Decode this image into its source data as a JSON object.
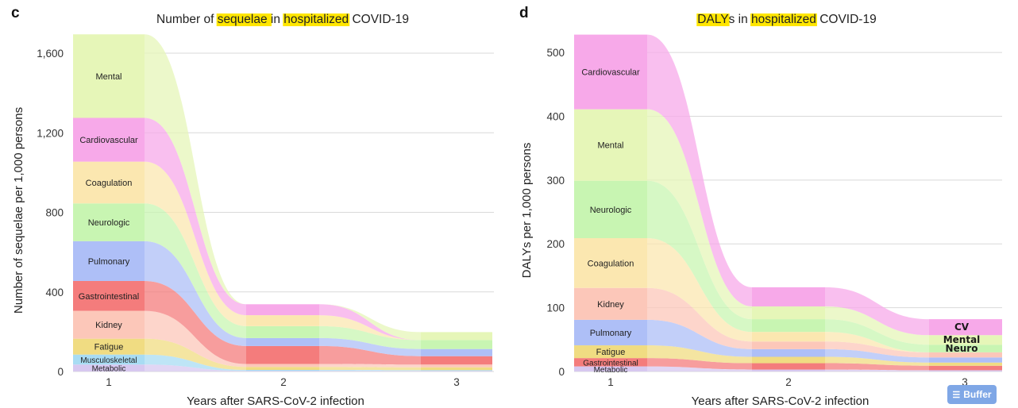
{
  "chart_data": [
    {
      "panel": "c",
      "type": "area",
      "subtype": "alluvial-stacked",
      "title_parts": [
        {
          "text": "Number of ",
          "highlight": false
        },
        {
          "text": "sequelae ",
          "highlight": true
        },
        {
          "text": "in ",
          "highlight": false
        },
        {
          "text": "hospitalized",
          "highlight": true
        },
        {
          "text": " COVID-19",
          "highlight": false
        }
      ],
      "xlabel": "Years after SARS-CoV-2 infection",
      "ylabel": "Number of sequelae per 1,000 persons",
      "x": [
        1,
        2,
        3
      ],
      "x_tick_labels": [
        "1",
        "2",
        "3"
      ],
      "ylim": [
        0,
        1700
      ],
      "y_ticks": [
        0,
        400,
        800,
        1200,
        1600
      ],
      "y_tick_labels": [
        "0",
        "400",
        "800",
        "1,200",
        "1,600"
      ],
      "grid": true,
      "legend": "inline labels at year 1",
      "series": [
        {
          "name": "Metabolic",
          "color": "#d7c8f0",
          "values": [
            35,
            3,
            3
          ]
        },
        {
          "name": "Musculoskeletal",
          "color": "#a8dcf3",
          "values": [
            50,
            5,
            4
          ]
        },
        {
          "name": "Fatigue",
          "color": "#f0dc82",
          "values": [
            80,
            15,
            14
          ]
        },
        {
          "name": "Kidney",
          "color": "#fcc7b9",
          "values": [
            140,
            15,
            14
          ]
        },
        {
          "name": "Gastrointestinal",
          "color": "#f47c7c",
          "values": [
            150,
            90,
            42
          ]
        },
        {
          "name": "Pulmonary",
          "color": "#aebff7",
          "values": [
            200,
            40,
            36
          ]
        },
        {
          "name": "Neurologic",
          "color": "#c8f5b2",
          "values": [
            190,
            60,
            45
          ]
        },
        {
          "name": "Coagulation",
          "color": "#fbe7b0",
          "values": [
            210,
            55,
            0
          ]
        },
        {
          "name": "Cardiovascular",
          "color": "#f7a9e9",
          "values": [
            220,
            55,
            0
          ]
        },
        {
          "name": "Mental",
          "color": "#e6f6b8",
          "values": [
            420,
            0,
            40
          ]
        }
      ]
    },
    {
      "panel": "d",
      "type": "area",
      "subtype": "alluvial-stacked",
      "title_parts": [
        {
          "text": "DALY",
          "highlight": true
        },
        {
          "text": "s in ",
          "highlight": false
        },
        {
          "text": "hospitalized",
          "highlight": true
        },
        {
          "text": " COVID-19",
          "highlight": false
        }
      ],
      "xlabel": "Years after SARS-CoV-2 infection",
      "ylabel": "DALYs per 1,000 persons",
      "x": [
        1,
        2,
        3
      ],
      "x_tick_labels": [
        "1",
        "2",
        "3"
      ],
      "ylim": [
        0,
        530
      ],
      "y_ticks": [
        0,
        100,
        200,
        300,
        400,
        500
      ],
      "y_tick_labels": [
        "0",
        "100",
        "200",
        "300",
        "400",
        "500"
      ],
      "grid": true,
      "legend": "inline labels at year 1; CV, Mental, Neuro labelled at year 3",
      "end_labels": [
        "CV",
        "Mental",
        "Neuro"
      ],
      "series": [
        {
          "name": "Metabolic",
          "color": "#d7c8f0",
          "values": [
            8,
            3,
            2
          ]
        },
        {
          "name": "Gastrointestinal",
          "color": "#f47c7c",
          "values": [
            13,
            10,
            7
          ]
        },
        {
          "name": "Fatigue",
          "color": "#f0dc82",
          "values": [
            20,
            10,
            5
          ]
        },
        {
          "name": "Pulmonary",
          "color": "#aebff7",
          "values": [
            40,
            12,
            8
          ]
        },
        {
          "name": "Kidney",
          "color": "#fcc7b9",
          "values": [
            50,
            12,
            8
          ]
        },
        {
          "name": "Coagulation",
          "color": "#fbe7b0",
          "values": [
            78,
            15,
            0
          ]
        },
        {
          "name": "Neurologic",
          "color": "#c8f5b2",
          "values": [
            90,
            20,
            12
          ]
        },
        {
          "name": "Mental",
          "color": "#e6f6b8",
          "values": [
            112,
            20,
            15
          ]
        },
        {
          "name": "Cardiovascular",
          "color": "#f7a9e9",
          "values": [
            117,
            30,
            25
          ]
        }
      ]
    }
  ],
  "badge": {
    "label": "Buffer",
    "icon": "layers-icon"
  }
}
